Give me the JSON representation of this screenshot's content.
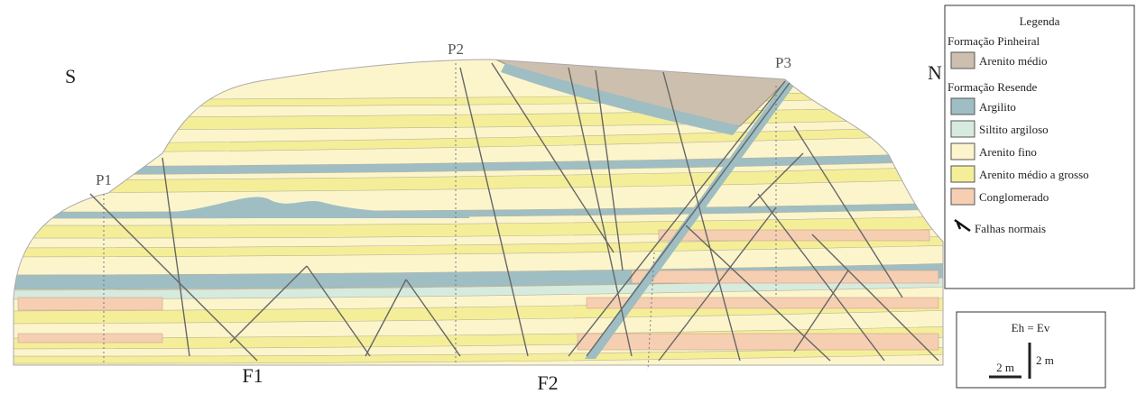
{
  "section_labels": {
    "south": "S",
    "north": "N"
  },
  "points": [
    "P1",
    "P2",
    "P3"
  ],
  "faults": [
    "F1",
    "F2"
  ],
  "legend": {
    "title": "Legenda",
    "groups": [
      {
        "name": "Formação Pinheiral",
        "items": [
          "Arenito médio"
        ]
      },
      {
        "name": "Formação Resende",
        "items": [
          "Argilito",
          "Siltito argiloso",
          "Arenito fino",
          "Arenito médio a grosso",
          "Conglomerado"
        ]
      }
    ],
    "fault_symbol": "Falhas normais"
  },
  "scale": {
    "ratio": "Eh = Ev",
    "horizontal": "2 m",
    "vertical": "2 m"
  }
}
